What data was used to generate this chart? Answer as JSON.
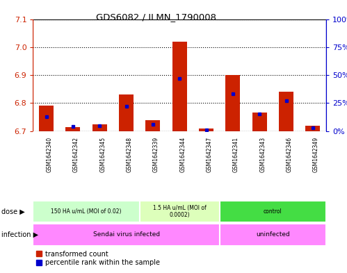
{
  "title": "GDS6082 / ILMN_1790008",
  "samples": [
    "GSM1642340",
    "GSM1642342",
    "GSM1642345",
    "GSM1642348",
    "GSM1642339",
    "GSM1642344",
    "GSM1642347",
    "GSM1642341",
    "GSM1642343",
    "GSM1642346",
    "GSM1642349"
  ],
  "transformed_count": [
    6.79,
    6.715,
    6.725,
    6.83,
    6.74,
    7.02,
    6.71,
    6.9,
    6.765,
    6.84,
    6.72
  ],
  "percentile_rank": [
    13,
    4,
    5,
    22,
    6,
    47,
    1,
    33,
    15,
    27,
    3
  ],
  "ylim_left": [
    6.7,
    7.1
  ],
  "ylim_right": [
    0,
    100
  ],
  "yticks_left": [
    6.7,
    6.8,
    6.9,
    7.0,
    7.1
  ],
  "yticks_right": [
    0,
    25,
    50,
    75,
    100
  ],
  "ytick_labels_right": [
    "0%",
    "25%",
    "50%",
    "75%",
    "100%"
  ],
  "dose_groups": [
    {
      "label": "150 HA u/mL (MOI of 0.02)",
      "start": 0,
      "end": 4,
      "color": "#ccffcc"
    },
    {
      "label": "1.5 HA u/mL (MOI of\n0.0002)",
      "start": 4,
      "end": 7,
      "color": "#ddffbb"
    },
    {
      "label": "control",
      "start": 7,
      "end": 11,
      "color": "#44dd44"
    }
  ],
  "infection_groups": [
    {
      "label": "Sendai virus infected",
      "start": 0,
      "end": 7,
      "color": "#ff88ff"
    },
    {
      "label": "uninfected",
      "start": 7,
      "end": 11,
      "color": "#ff88ff"
    }
  ],
  "bar_color_red": "#cc2200",
  "bar_color_blue": "#0000cc",
  "background_color": "#ffffff",
  "left_axis_color": "#cc2200",
  "right_axis_color": "#0000cc",
  "legend_red_label": "transformed count",
  "legend_blue_label": "percentile rank within the sample",
  "dose_label": "dose",
  "infection_label": "infection",
  "xtick_bg_color": "#cccccc",
  "plot_border_color": "#000000"
}
